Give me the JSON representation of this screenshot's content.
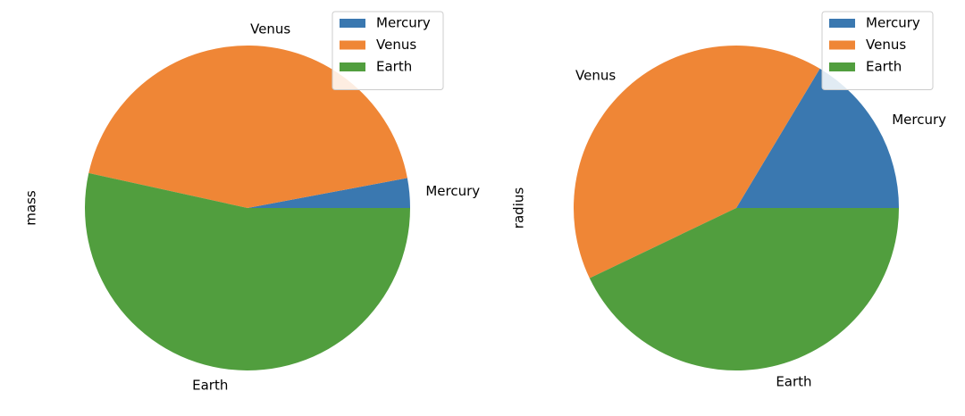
{
  "chart_data": [
    {
      "type": "pie",
      "ylabel": "mass",
      "categories": [
        "Mercury",
        "Venus",
        "Earth"
      ],
      "values": [
        0.33,
        4.87,
        5.97
      ],
      "colors": [
        "#3a78b0",
        "#ef8636",
        "#519e3e"
      ],
      "legend": "upper right"
    },
    {
      "type": "pie",
      "ylabel": "radius",
      "categories": [
        "Mercury",
        "Venus",
        "Earth"
      ],
      "values": [
        2439.7,
        6051.8,
        6378.1
      ],
      "colors": [
        "#3a78b0",
        "#ef8636",
        "#519e3e"
      ],
      "legend": "upper right"
    }
  ]
}
